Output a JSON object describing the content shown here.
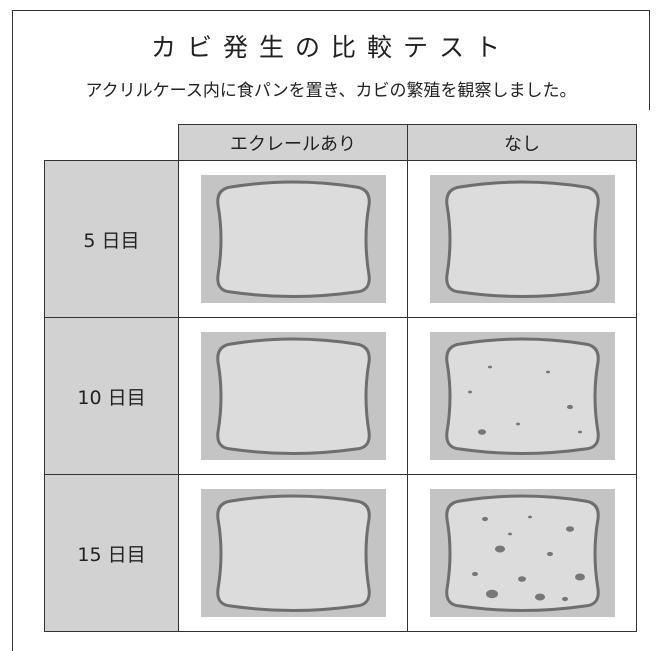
{
  "header": {
    "title": "カビ発生の比較テスト",
    "subtitle": "アクリルケース内に食パンを置き、カビの繁殖を観察しました。"
  },
  "table": {
    "columns": [
      "エクレールあり",
      "なし"
    ],
    "rows": [
      "5 日目",
      "10 日目",
      "15 日目"
    ]
  }
}
